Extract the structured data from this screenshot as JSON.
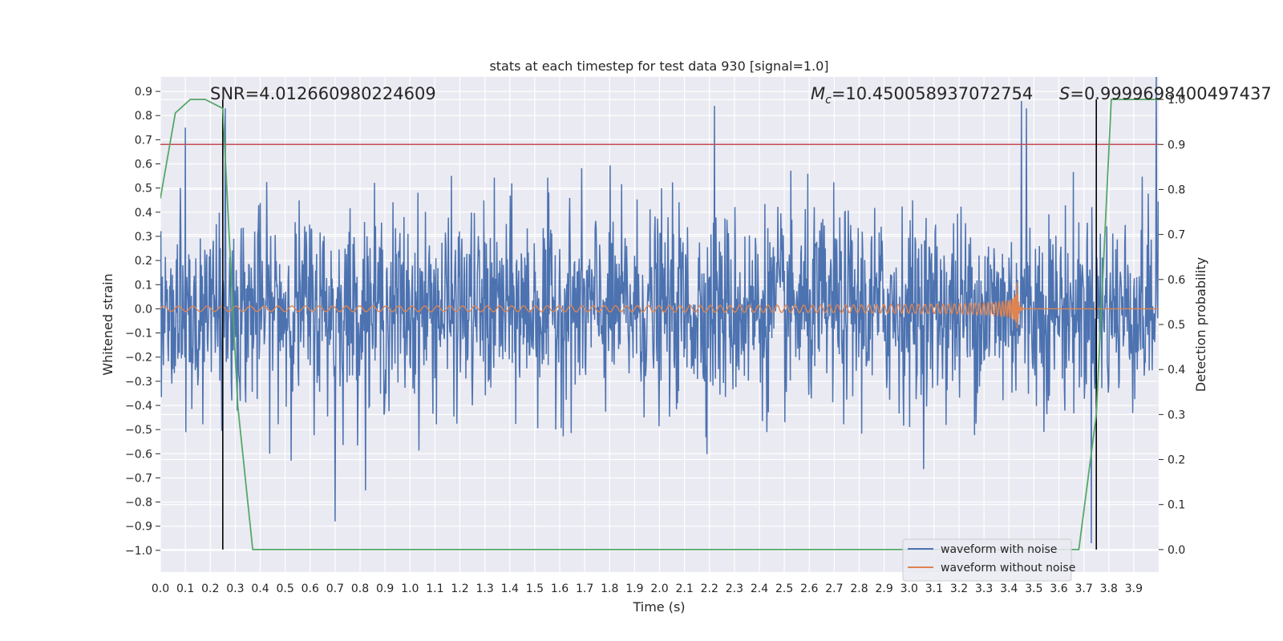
{
  "chart_data": {
    "type": "line",
    "title": "stats at each timestep for test data 930 [signal=1.0]",
    "xlabel": "Time (s)",
    "ylabel_left": "Whitened strain",
    "ylabel_right": "Detection probability",
    "xlim": [
      0.0,
      4.0
    ],
    "ylim_left": [
      -1.09,
      0.96
    ],
    "ylim_right": [
      -0.05,
      1.05
    ],
    "x_ticks": [
      "0.0",
      "0.1",
      "0.2",
      "0.3",
      "0.4",
      "0.5",
      "0.6",
      "0.7",
      "0.8",
      "0.9",
      "1.0",
      "1.1",
      "1.2",
      "1.3",
      "1.4",
      "1.5",
      "1.6",
      "1.7",
      "1.8",
      "1.9",
      "2.0",
      "2.1",
      "2.2",
      "2.3",
      "2.4",
      "2.5",
      "2.6",
      "2.7",
      "2.8",
      "2.9",
      "3.0",
      "3.1",
      "3.2",
      "3.3",
      "3.4",
      "3.5",
      "3.6",
      "3.7",
      "3.8",
      "3.9"
    ],
    "y_ticks_left": [
      "0.9",
      "0.8",
      "0.7",
      "0.6",
      "0.5",
      "0.4",
      "0.3",
      "0.2",
      "0.1",
      "0.0",
      "−0.1",
      "−0.2",
      "−0.3",
      "−0.4",
      "−0.5",
      "−0.6",
      "−0.7",
      "−0.8",
      "−0.9",
      "−1.0"
    ],
    "y_ticks_right": [
      "1.0",
      "0.9",
      "0.8",
      "0.7",
      "0.6",
      "0.5",
      "0.4",
      "0.3",
      "0.2",
      "0.1",
      "0.0"
    ],
    "annotations": {
      "snr": "SNR=4.012660980224609",
      "mc_symbol": "M",
      "mc_sub": "c",
      "mc_value": "=10.450058937072754",
      "s_symbol": "S",
      "s_value": "=0.9999698400497437"
    },
    "threshold_probability": 0.9,
    "vertical_markers_s": [
      0.25,
      3.75
    ],
    "series": [
      {
        "name": "waveform with noise",
        "color": "#4c72b0",
        "axis": "left",
        "description": "noisy whitened strain, amplitude mostly within ±0.5, spikes up to ~0.85 and down to ~-1.0"
      },
      {
        "name": "waveform without noise",
        "color": "#dd8452",
        "axis": "left",
        "description": "chirp signal, amplitude growing to ~0.14 at merger near 3.43 s, then ringdown to 0"
      },
      {
        "name": "detection probability",
        "color": "#55a868",
        "axis": "right",
        "x": [
          0.0,
          0.06,
          0.12,
          0.18,
          0.25,
          0.31,
          0.37,
          0.43,
          3.56,
          3.62,
          3.68,
          3.75,
          3.81,
          3.87,
          3.93,
          4.0
        ],
        "y": [
          0.78,
          0.97,
          1.0,
          1.0,
          0.98,
          0.32,
          0.0,
          0.0,
          0.0,
          0.0,
          0.0,
          0.3,
          1.0,
          1.0,
          1.0,
          1.0
        ]
      }
    ],
    "threshold_color": "#c44e52",
    "background_color": "#eaeaf2",
    "grid_color": "#ffffff",
    "legend_position": "lower-right"
  }
}
